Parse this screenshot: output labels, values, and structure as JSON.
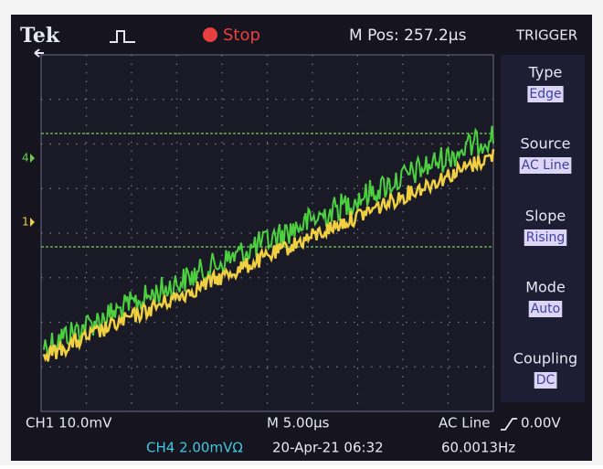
{
  "header": {
    "brand": "Tek",
    "status": "Stop",
    "position": "M Pos: 257.2µs",
    "menu_title": "TRIGGER"
  },
  "menu": [
    {
      "label": "Type",
      "value": "Edge"
    },
    {
      "label": "Source",
      "value": "AC Line"
    },
    {
      "label": "Slope",
      "value": "Rising"
    },
    {
      "label": "Mode",
      "value": "Auto"
    },
    {
      "label": "Coupling",
      "value": "DC"
    }
  ],
  "markers": {
    "ch4": "4",
    "ch1": "1"
  },
  "footer": {
    "ch1_scale": "CH1  10.0mV",
    "timebase": "M 5.00µs",
    "trigger_source": "AC Line",
    "trigger_level": "0.00V",
    "ch4_scale": "CH4  2.00mVΩ",
    "date": "20-Apr-21 06:32",
    "frequency": "60.0013Hz"
  }
}
